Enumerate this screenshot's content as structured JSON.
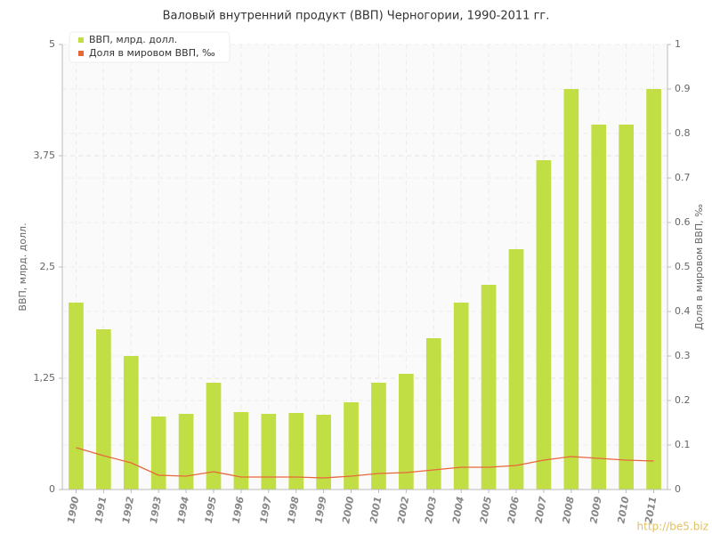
{
  "chart_data": {
    "type": "bar",
    "title": "Валовый внутренний продукт (ВВП) Черногории, 1990-2011 гг.",
    "y_label": "ВВП, млрд. долл.",
    "y2_label": "Доля в мировом ВВП, ‰",
    "watermark": "http://be5.biz",
    "categories": [
      "1990",
      "1991",
      "1992",
      "1993",
      "1994",
      "1995",
      "1996",
      "1997",
      "1998",
      "1999",
      "2000",
      "2001",
      "2002",
      "2003",
      "2004",
      "2005",
      "2006",
      "2007",
      "2008",
      "2009",
      "2010",
      "2011"
    ],
    "series": [
      {
        "name": "ВВП, млрд. долл.",
        "type": "bar",
        "color": "#c2de45",
        "axis": "y",
        "values": [
          2.1,
          1.8,
          1.5,
          0.82,
          0.85,
          1.2,
          0.87,
          0.85,
          0.86,
          0.84,
          0.98,
          1.2,
          1.3,
          1.7,
          2.1,
          2.3,
          2.7,
          3.7,
          4.5,
          4.1,
          4.1,
          4.5
        ]
      },
      {
        "name": "Доля в мировом ВВП, ‰",
        "type": "line",
        "color": "#e8673a",
        "axis": "y2",
        "values": [
          0.094,
          0.076,
          0.06,
          0.032,
          0.03,
          0.04,
          0.028,
          0.028,
          0.028,
          0.026,
          0.03,
          0.036,
          0.038,
          0.044,
          0.05,
          0.05,
          0.054,
          0.066,
          0.074,
          0.07,
          0.066,
          0.064
        ]
      }
    ],
    "ylim": [
      0,
      5
    ],
    "yticks": [
      0,
      {
        "value": 1.25,
        "label": "1,25"
      },
      {
        "value": 2.5,
        "label": "2,5"
      },
      {
        "value": 3.75,
        "label": "3,75"
      },
      5
    ],
    "y2lim": [
      0,
      1
    ],
    "y2ticks": [
      0,
      0.1,
      0.2,
      0.3,
      0.4,
      0.5,
      0.6,
      0.7,
      0.8,
      0.9,
      1
    ],
    "grid": true,
    "legend": "top-left"
  }
}
